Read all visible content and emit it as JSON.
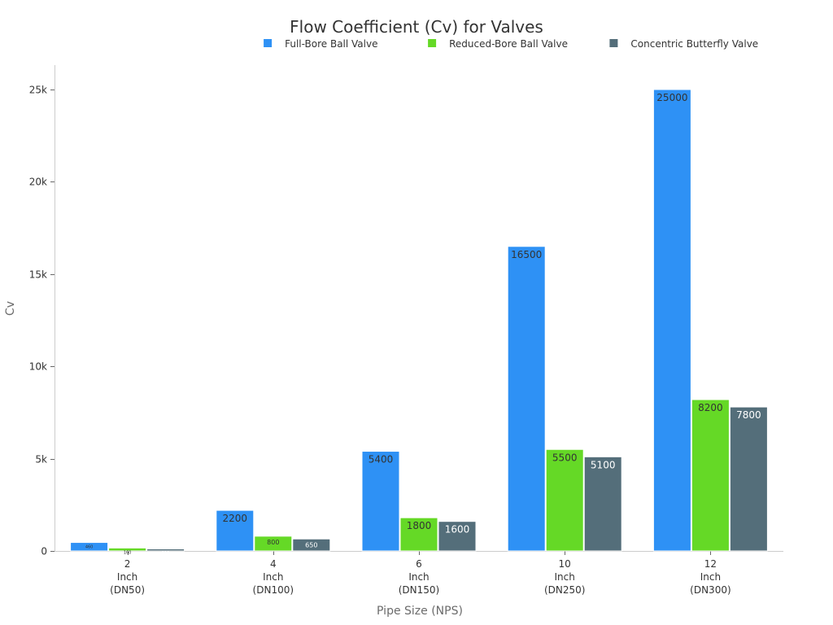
{
  "chart_data": {
    "type": "bar",
    "title": "Flow Coefficient (Cv) for Valves",
    "xlabel": "Pipe Size (NPS)",
    "ylabel": "Cv",
    "categories": [
      [
        "2",
        "Inch",
        "(DN50)"
      ],
      [
        "4",
        "Inch",
        "(DN100)"
      ],
      [
        "6",
        "Inch",
        "(DN150)"
      ],
      [
        "10",
        "Inch",
        "(DN250)"
      ],
      [
        "12",
        "Inch",
        "(DN300)"
      ]
    ],
    "series": [
      {
        "name": "Full-Bore Ball Valve",
        "color": "#2e91f5",
        "label_color": "#333333",
        "values": [
          460,
          2200,
          5400,
          16500,
          25000
        ]
      },
      {
        "name": "Reduced-Bore Ball Valve",
        "color": "#65d926",
        "label_color": "#333333",
        "values": [
          160,
          800,
          1800,
          5500,
          8200
        ]
      },
      {
        "name": "Concentric Butterfly Valve",
        "color": "#546e7a",
        "label_color": "#ffffff",
        "values": [
          110,
          650,
          1600,
          5100,
          7800
        ]
      }
    ],
    "ylim": [
      0,
      26000
    ],
    "yticks": [
      {
        "value": 0,
        "label": "0"
      },
      {
        "value": 5000,
        "label": "5k"
      },
      {
        "value": 10000,
        "label": "10k"
      },
      {
        "value": 15000,
        "label": "15k"
      },
      {
        "value": 20000,
        "label": "20k"
      },
      {
        "value": 25000,
        "label": "25k"
      }
    ],
    "legend_position": "top-right",
    "grid": false
  }
}
